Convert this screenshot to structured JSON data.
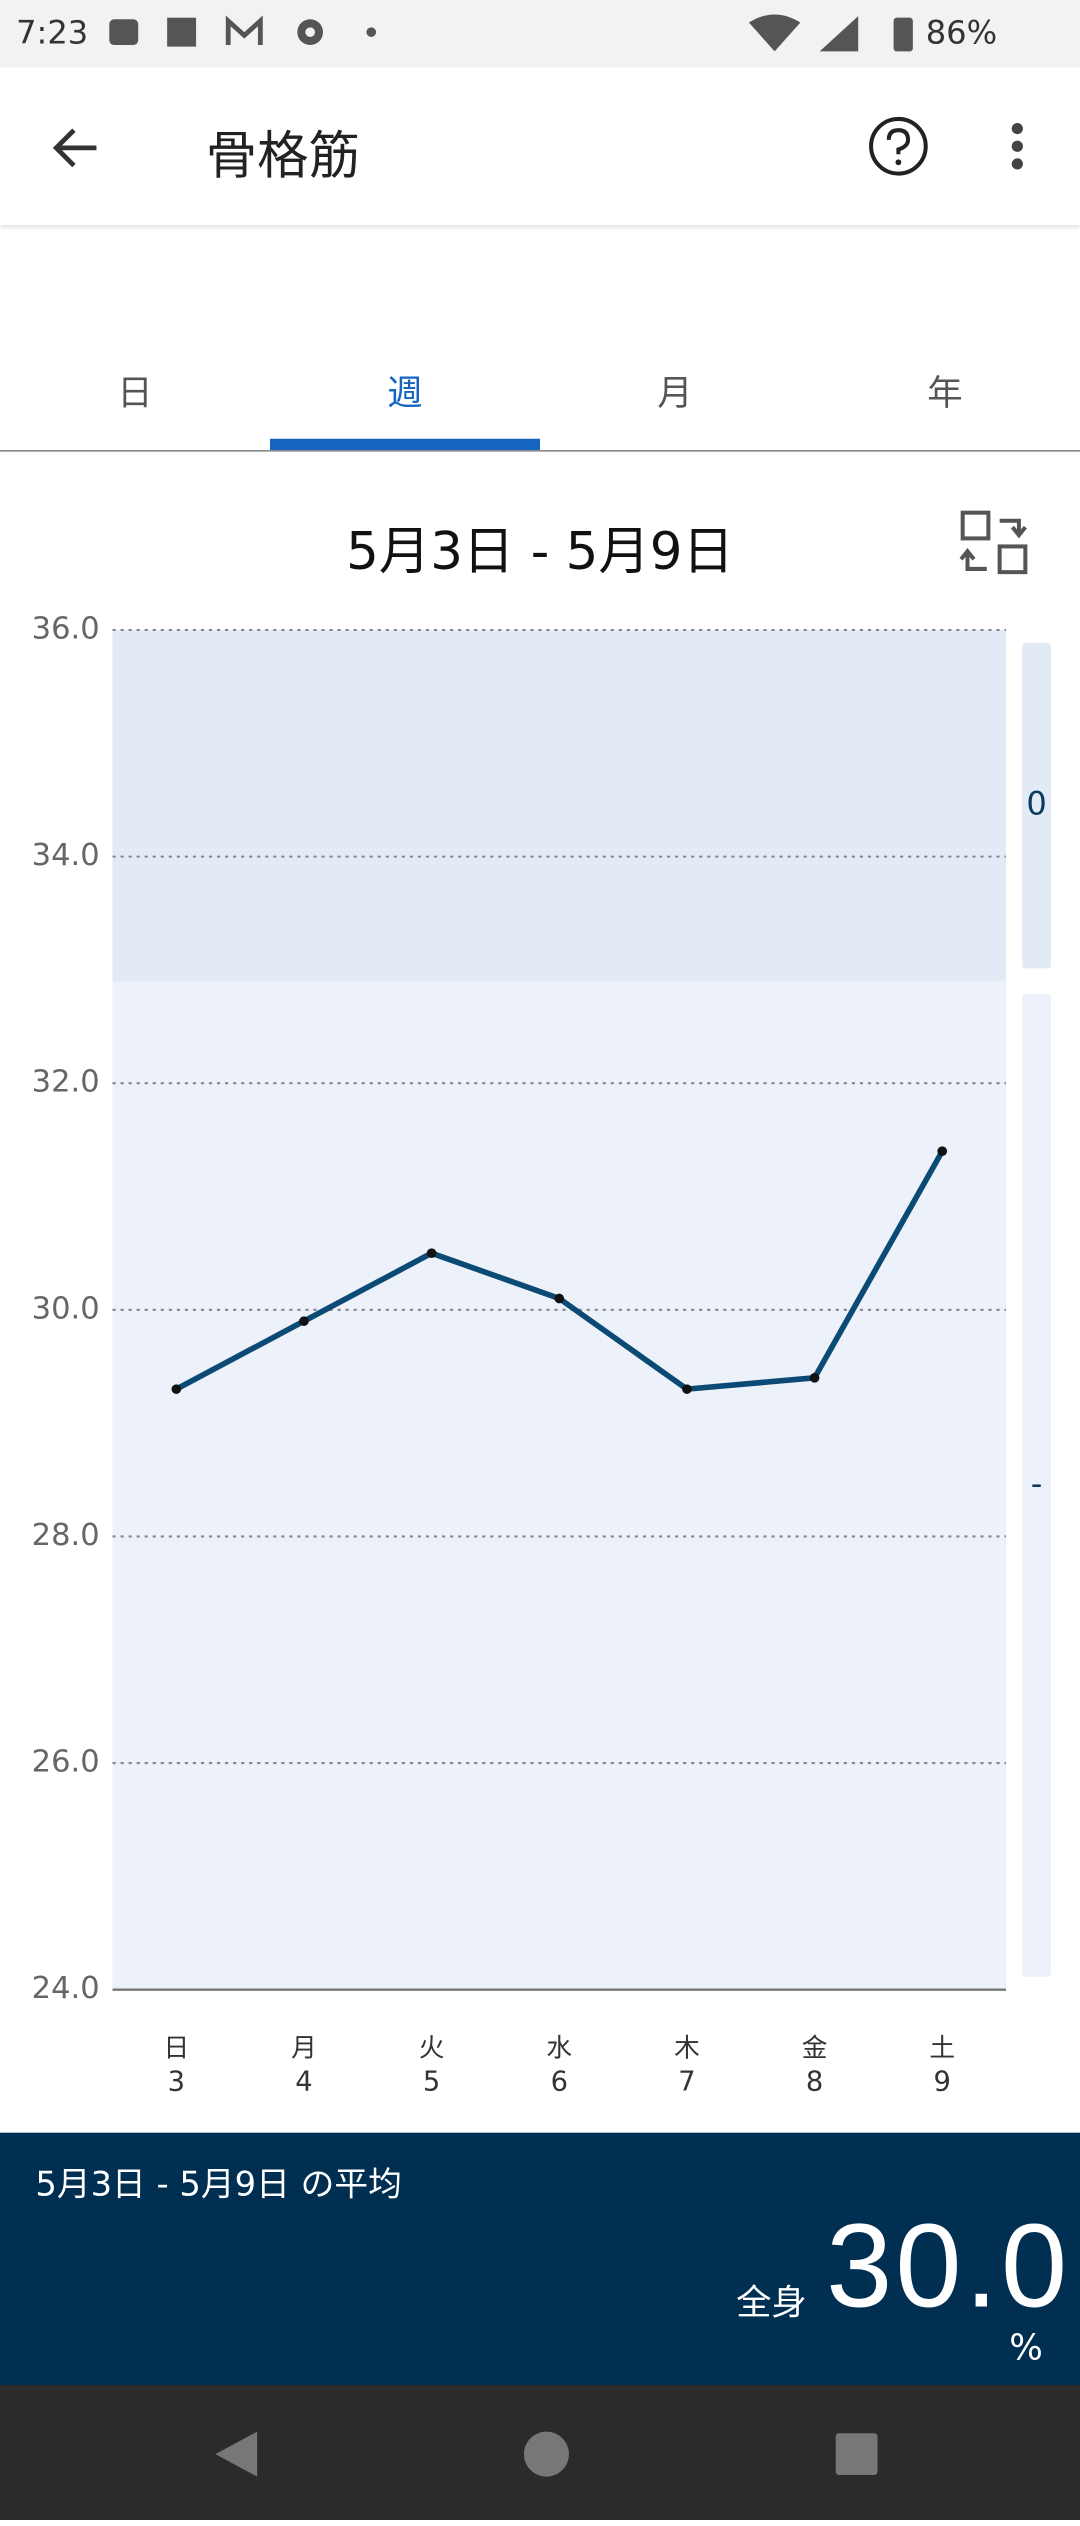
{
  "status_bar": {
    "time": "7:23",
    "battery": "86%"
  },
  "app_bar": {
    "title": "骨格筋"
  },
  "tabs": {
    "items": [
      "日",
      "週",
      "月",
      "年"
    ],
    "selected": 1
  },
  "date_range": "5月3日 - 5月9日",
  "chart_data": {
    "type": "line",
    "categories": [
      "日",
      "月",
      "火",
      "水",
      "木",
      "金",
      "土"
    ],
    "dates": [
      "3",
      "4",
      "5",
      "6",
      "7",
      "8",
      "9"
    ],
    "values": [
      29.3,
      29.9,
      30.5,
      30.1,
      29.3,
      29.4,
      31.4
    ],
    "color": "#0b4a74",
    "ylim": [
      24,
      36
    ],
    "yticks": [
      {
        "value": 24,
        "label": "24.0"
      },
      {
        "value": 26,
        "label": "26.0"
      },
      {
        "value": 28,
        "label": "28.0"
      },
      {
        "value": 30,
        "label": "30.0"
      },
      {
        "value": 32,
        "label": "32.0"
      },
      {
        "value": 34,
        "label": "34.0"
      },
      {
        "value": 36,
        "label": "36.0"
      }
    ],
    "grid": true,
    "bands": [
      {
        "from": 32.9,
        "to": 36,
        "label": "0",
        "color": "#e2eaf6"
      },
      {
        "from": 24,
        "to": 32.9,
        "label": "-",
        "color": "#edf2fa"
      }
    ]
  },
  "summary": {
    "caption": "5月3日 - 5月9日 の平均",
    "part": "全身",
    "value": "30.0",
    "unit": "%"
  }
}
